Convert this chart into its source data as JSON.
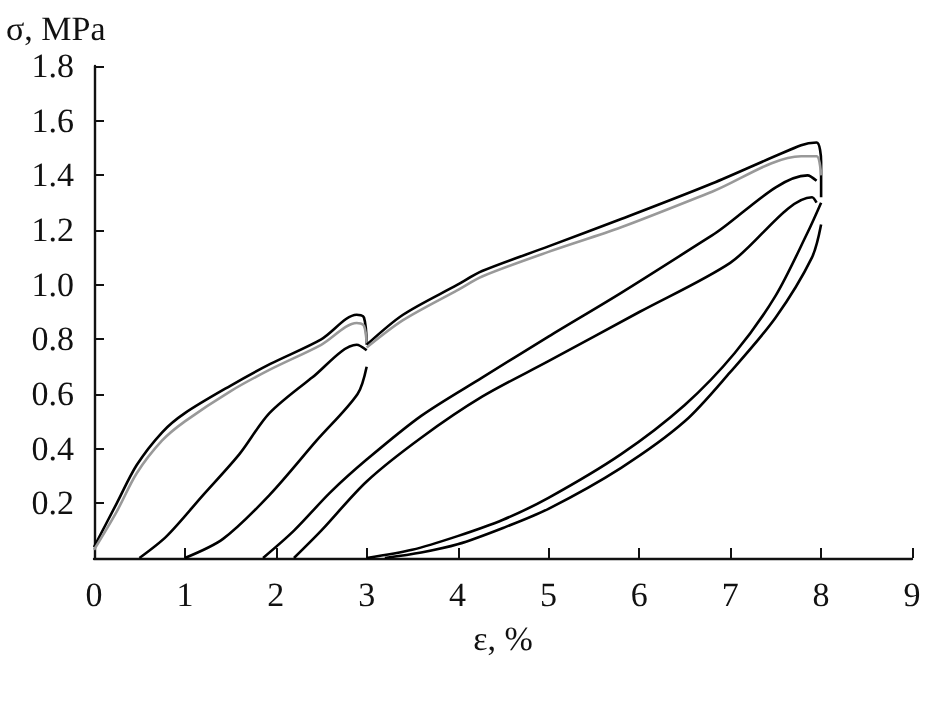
{
  "chart_data": {
    "type": "line",
    "xlabel": "ε, %",
    "ylabel": "σ, MPa",
    "xlim": [
      0,
      9
    ],
    "xticks": [
      0,
      1,
      2,
      3,
      4,
      5,
      6,
      7,
      8,
      9
    ],
    "ylim": [
      0,
      1.8
    ],
    "yticks": [
      {
        "value": 0.2,
        "label": "0.2"
      },
      {
        "value": 0.4,
        "label": "0.4"
      },
      {
        "value": 0.6,
        "label": "0.6"
      },
      {
        "value": 0.8,
        "label": "0.8"
      },
      {
        "value": 1.0,
        "label": "1.0"
      },
      {
        "value": 1.2,
        "label": "1.2"
      },
      {
        "value": 1.4,
        "label": "1.4"
      },
      {
        "value": 1.6,
        "label": "1.6"
      },
      {
        "value": 1.8,
        "label": "1.8"
      }
    ],
    "grid": false,
    "marker": "none",
    "line_style": "solid",
    "series": [
      {
        "color": "#000000",
        "x": [
          0,
          0.25,
          0.47,
          0.75,
          1,
          1.5,
          1.94,
          2.5,
          2.89,
          2.97,
          3.0
        ],
        "values": [
          0.04,
          0.2,
          0.34,
          0.46,
          0.53,
          0.63,
          0.71,
          0.8,
          0.89,
          0.88,
          0.78
        ]
      },
      {
        "color": "#999999",
        "x": [
          0,
          0.25,
          0.47,
          0.75,
          1,
          1.5,
          1.94,
          2.5,
          2.89,
          2.97,
          3.0
        ],
        "values": [
          0.03,
          0.17,
          0.31,
          0.43,
          0.5,
          0.61,
          0.69,
          0.78,
          0.86,
          0.85,
          0.78
        ]
      },
      {
        "color": "#000000",
        "x": [
          0.5,
          0.8,
          1.2,
          1.6,
          1.93,
          2.4,
          2.89,
          3.0
        ],
        "values": [
          0,
          0.08,
          0.23,
          0.38,
          0.53,
          0.66,
          0.78,
          0.76
        ]
      },
      {
        "color": "#000000",
        "x": [
          3.0,
          2.9,
          2.45,
          1.93,
          1.42,
          1.0
        ],
        "values": [
          0.7,
          0.6,
          0.43,
          0.23,
          0.07,
          0
        ]
      },
      {
        "color": "#000000",
        "x": [
          3.0,
          3.4,
          4.0,
          4.27,
          5,
          5.8,
          6.8,
          7.78,
          7.95,
          8.0,
          8.0
        ],
        "values": [
          0.78,
          0.89,
          1.0,
          1.05,
          1.14,
          1.24,
          1.37,
          1.51,
          1.52,
          1.45,
          1.32
        ]
      },
      {
        "color": "#999999",
        "x": [
          3.0,
          3.4,
          4.0,
          4.27,
          5,
          5.8,
          6.8,
          7.78,
          7.95,
          8.0
        ],
        "values": [
          0.77,
          0.87,
          0.98,
          1.03,
          1.12,
          1.21,
          1.34,
          1.47,
          1.47,
          1.4
        ]
      },
      {
        "color": "#000000",
        "x": [
          1.86,
          2.2,
          2.6,
          3.0,
          3.6,
          4.27,
          5,
          5.8,
          6.8,
          7.85,
          7.95
        ],
        "values": [
          0,
          0.1,
          0.24,
          0.36,
          0.52,
          0.66,
          0.81,
          0.97,
          1.18,
          1.4,
          1.38
        ]
      },
      {
        "color": "#000000",
        "x": [
          2.2,
          2.5,
          3,
          3.6,
          4.27,
          5,
          6,
          7,
          7.9,
          7.95
        ],
        "values": [
          0,
          0.1,
          0.28,
          0.44,
          0.59,
          0.72,
          0.9,
          1.08,
          1.32,
          1.3
        ]
      },
      {
        "color": "#000000",
        "x": [
          8,
          7.85,
          7.5,
          7.05,
          6.5,
          5.8,
          5,
          4.5,
          4,
          3.5,
          3.0
        ],
        "values": [
          1.3,
          1.19,
          0.96,
          0.75,
          0.56,
          0.38,
          0.22,
          0.14,
          0.08,
          0.03,
          0
        ]
      },
      {
        "color": "#000000",
        "x": [
          8,
          7.9,
          7.5,
          7,
          6.5,
          5.8,
          5,
          4.5,
          4,
          3.6,
          3.2
        ],
        "values": [
          1.22,
          1.1,
          0.88,
          0.68,
          0.5,
          0.33,
          0.18,
          0.11,
          0.05,
          0.02,
          0
        ]
      }
    ]
  }
}
